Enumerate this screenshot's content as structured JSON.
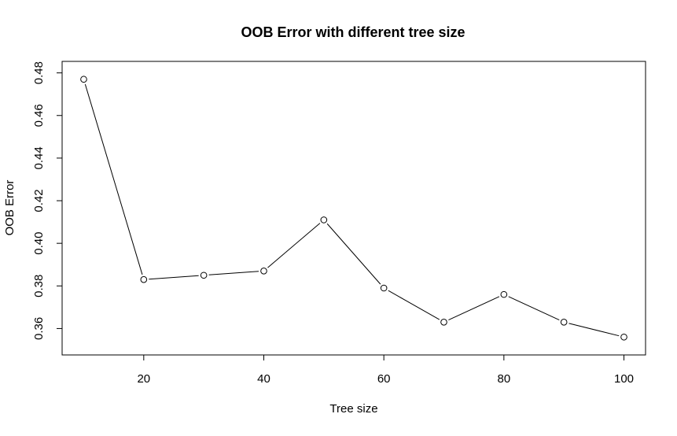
{
  "chart_data": {
    "type": "line",
    "title": "OOB Error with different tree size",
    "xlabel": "Tree size",
    "ylabel": "OOB Error",
    "x": [
      10,
      20,
      30,
      40,
      50,
      60,
      70,
      80,
      90,
      100
    ],
    "series": [
      {
        "values": [
          0.477,
          0.383,
          0.385,
          0.387,
          0.411,
          0.379,
          0.363,
          0.376,
          0.363,
          0.356
        ]
      }
    ],
    "xlim": [
      6.4,
      103.6
    ],
    "ylim": [
      0.3476,
      0.4854
    ],
    "xticks": [
      20,
      40,
      60,
      80,
      100
    ],
    "xtick_labels": [
      "20",
      "40",
      "60",
      "80",
      "100"
    ],
    "yticks": [
      0.36,
      0.38,
      0.4,
      0.42,
      0.44,
      0.46,
      0.48
    ],
    "ytick_labels": [
      "0.36",
      "0.38",
      "0.40",
      "0.42",
      "0.44",
      "0.46",
      "0.48"
    ],
    "marker": "open-circle",
    "line_color": "#000000",
    "grid": false,
    "legend": "none"
  }
}
